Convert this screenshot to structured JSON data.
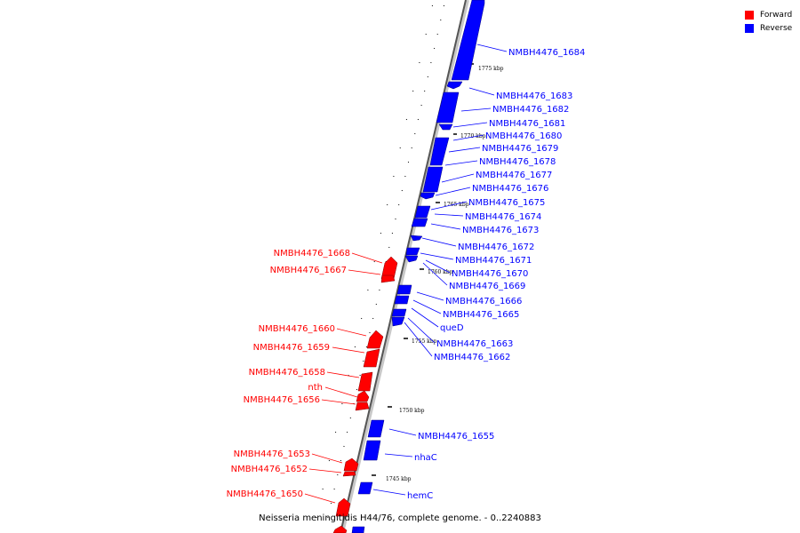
{
  "legend": {
    "forward_label": "Forward",
    "forward_color": "#ff0000",
    "reverse_label": "Reverse",
    "reverse_color": "#0000ff"
  },
  "caption": "Neisseria meningitidis H44/76, complete genome. - 0..2240883",
  "ticks": [
    "1775 kbp",
    "1770 kbp",
    "1765 kbp",
    "1760 kbp",
    "1755 kbp",
    "1750 kbp",
    "1745 kbp"
  ],
  "reverse_genes": [
    "NMBH4476_1684",
    "NMBH4476_1683",
    "NMBH4476_1682",
    "NMBH4476_1681",
    "NMBH4476_1680",
    "NMBH4476_1679",
    "NMBH4476_1678",
    "NMBH4476_1677",
    "NMBH4476_1676",
    "NMBH4476_1675",
    "NMBH4476_1674",
    "NMBH4476_1673",
    "NMBH4476_1672",
    "NMBH4476_1671",
    "NMBH4476_1670",
    "NMBH4476_1669",
    "NMBH4476_1666",
    "NMBH4476_1665",
    "queD",
    "NMBH4476_1663",
    "NMBH4476_1662",
    "NMBH4476_1655",
    "nhaC",
    "hemC"
  ],
  "forward_genes": [
    "NMBH4476_1668",
    "NMBH4476_1667",
    "NMBH4476_1660",
    "NMBH4476_1659",
    "NMBH4476_1658",
    "nth",
    "NMBH4476_1656",
    "NMBH4476_1653",
    "NMBH4476_1652",
    "NMBH4476_1650"
  ]
}
